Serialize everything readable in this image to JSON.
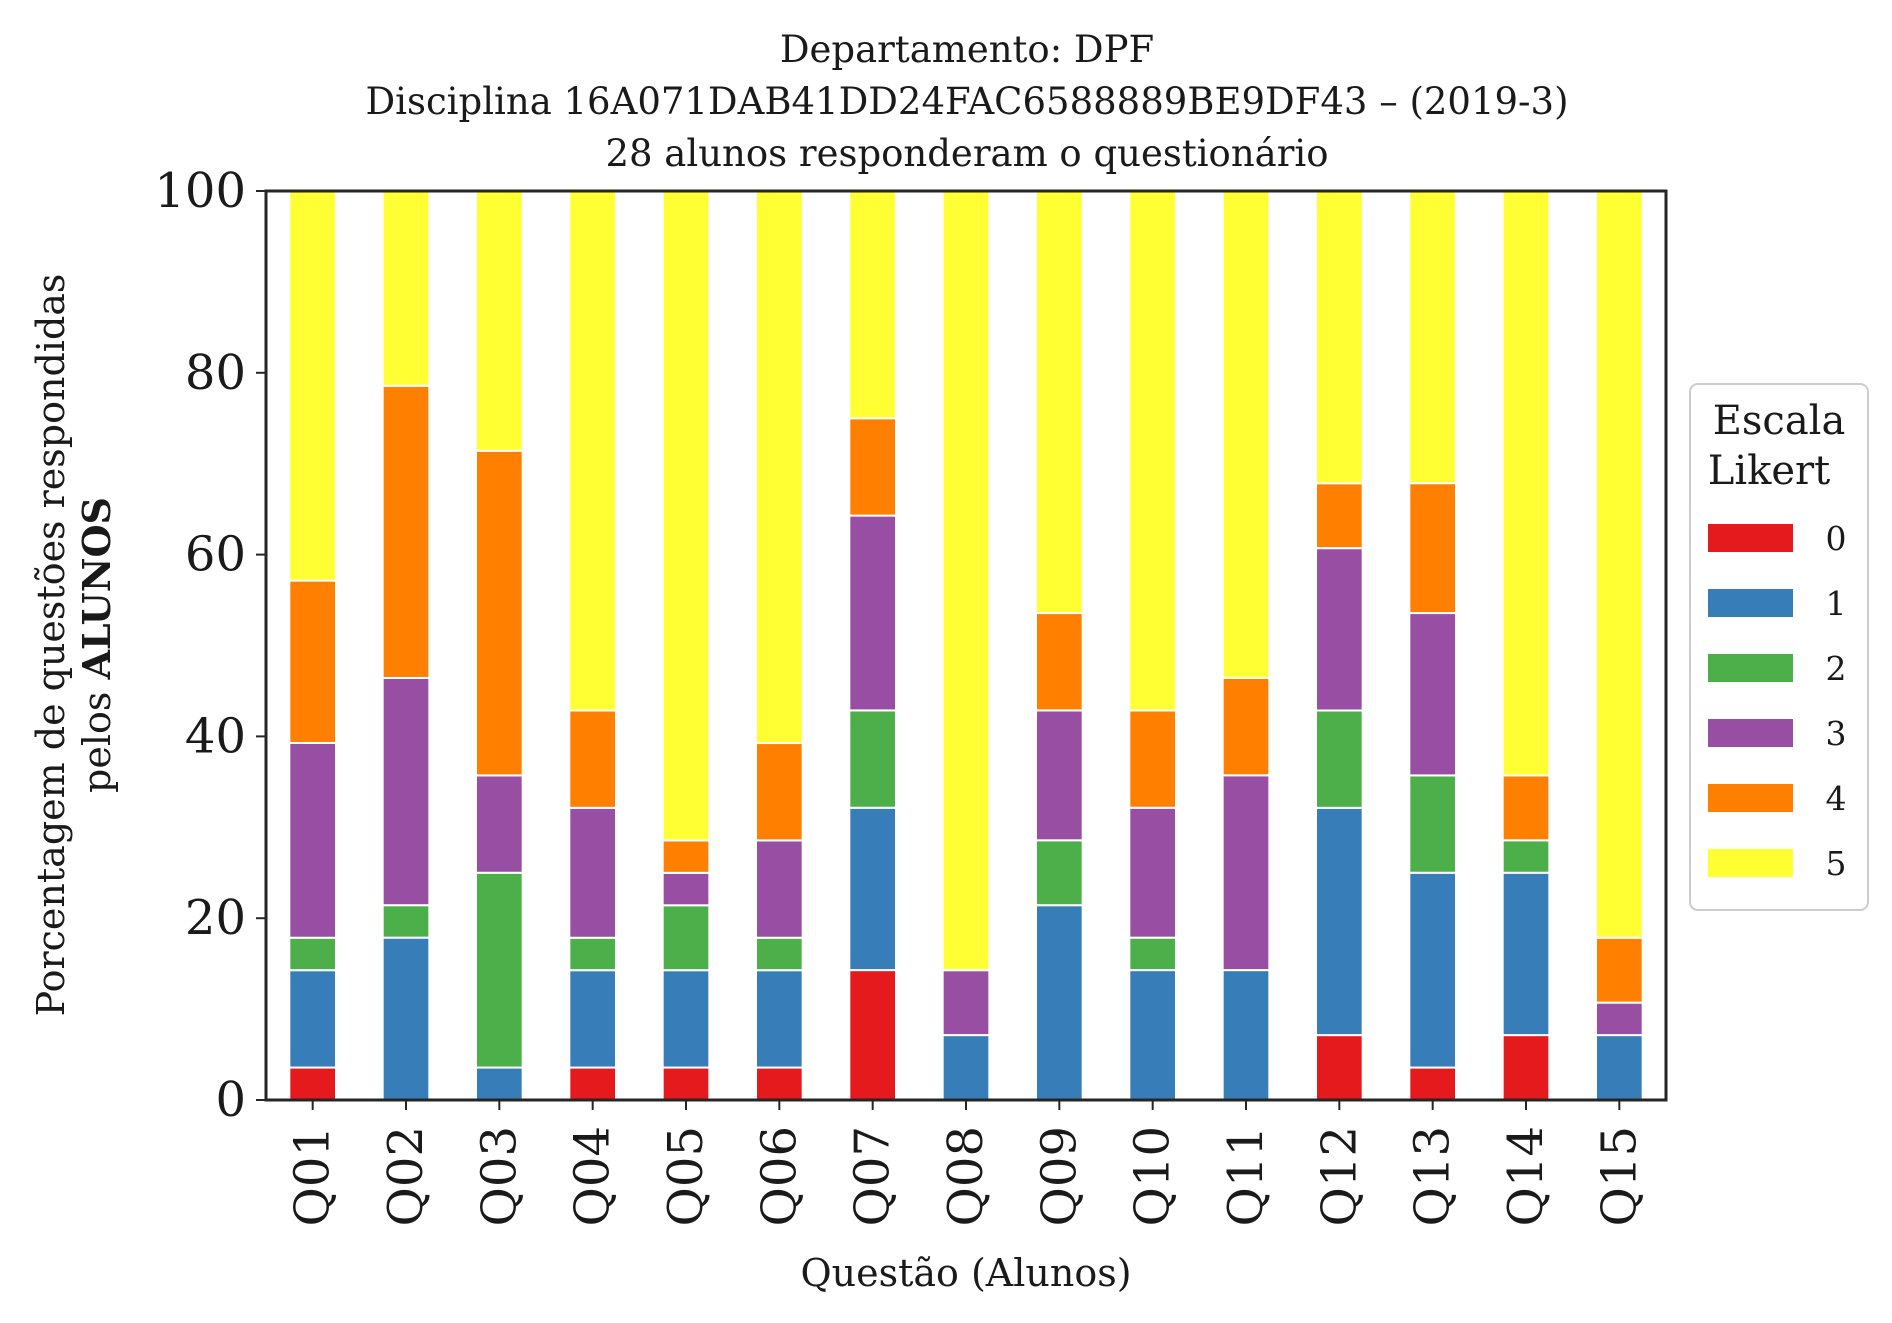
{
  "chart_data": {
    "type": "bar",
    "stacked": true,
    "title_lines": [
      "Departamento: DPF",
      "Disciplina 16A071DAB41DD24FAC6588889BE9DF43 – (2019-3)",
      "28 alunos responderam o questionário"
    ],
    "xlabel": "Questão (Alunos)",
    "ylabel_line1": "Porcentagem de questões respondidas",
    "ylabel_line2_prefix": "pelos ",
    "ylabel_line2_bold": "ALUNOS",
    "ylim": [
      0,
      100
    ],
    "yticks": [
      "0",
      "20",
      "40",
      "60",
      "80",
      "100"
    ],
    "grid": false,
    "legend": {
      "title_lines": [
        "Escala",
        "Likert"
      ],
      "placement": "center-right-outside"
    },
    "categories": [
      "Q01",
      "Q02",
      "Q03",
      "Q04",
      "Q05",
      "Q06",
      "Q07",
      "Q08",
      "Q09",
      "Q10",
      "Q11",
      "Q12",
      "Q13",
      "Q14",
      "Q15"
    ],
    "series": [
      {
        "name": "0",
        "color": "#e41a1c",
        "values": [
          3.57,
          0,
          0,
          3.57,
          3.57,
          3.57,
          14.29,
          0,
          0,
          0,
          0,
          7.14,
          3.57,
          7.14,
          0
        ]
      },
      {
        "name": "1",
        "color": "#377eb8",
        "values": [
          10.71,
          17.86,
          3.57,
          10.71,
          10.71,
          10.71,
          17.86,
          7.14,
          21.43,
          14.29,
          14.29,
          25.0,
          21.43,
          17.86,
          7.14
        ]
      },
      {
        "name": "2",
        "color": "#4daf4a",
        "values": [
          3.57,
          3.57,
          21.43,
          3.57,
          7.14,
          3.57,
          10.71,
          0,
          7.14,
          3.57,
          0,
          10.71,
          10.71,
          3.57,
          0
        ]
      },
      {
        "name": "3",
        "color": "#984ea3",
        "values": [
          21.43,
          25.0,
          10.71,
          14.29,
          3.57,
          10.71,
          21.43,
          7.14,
          14.29,
          14.29,
          21.43,
          17.86,
          17.86,
          0,
          3.57
        ]
      },
      {
        "name": "4",
        "color": "#ff7f00",
        "values": [
          17.86,
          32.14,
          35.71,
          10.71,
          3.57,
          10.71,
          10.71,
          0,
          10.71,
          10.71,
          10.71,
          7.14,
          14.29,
          7.14,
          7.14
        ]
      },
      {
        "name": "5",
        "color": "#ffff33",
        "values": [
          42.86,
          21.43,
          28.57,
          57.14,
          71.43,
          60.71,
          25.0,
          85.71,
          46.43,
          57.14,
          53.57,
          32.14,
          32.14,
          64.29,
          82.14
        ]
      }
    ]
  }
}
